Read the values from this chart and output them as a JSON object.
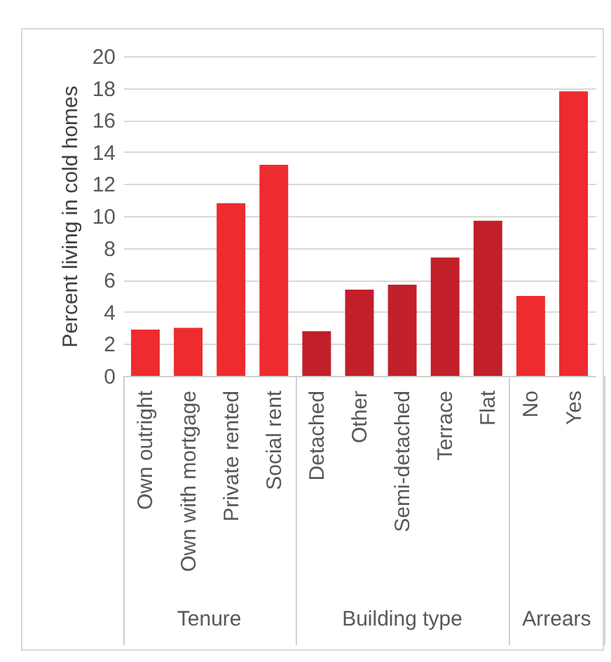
{
  "chart_data": {
    "type": "bar",
    "ylabel": "Percent living in cold homes",
    "categories": [
      "Own outright",
      "Own with mortgage",
      "Private rented",
      "Social rent",
      "Detached",
      "Other",
      "Semi-detached",
      "Terrace",
      "Flat",
      "No",
      "Yes"
    ],
    "values": [
      2.9,
      3.0,
      10.8,
      13.2,
      2.8,
      5.4,
      5.7,
      7.4,
      9.7,
      5.0,
      17.8
    ],
    "colors": [
      "#ee2b2e",
      "#ee2b2e",
      "#ee2b2e",
      "#ee2b2e",
      "#c1202a",
      "#c1202a",
      "#c1202a",
      "#c1202a",
      "#c1202a",
      "#ee2b2e",
      "#ee2b2e"
    ],
    "ylim": [
      0,
      20
    ],
    "yticks": [
      0,
      2,
      4,
      6,
      8,
      10,
      12,
      14,
      16,
      18,
      20
    ],
    "grid": "y",
    "annotations": [
      "Tenure",
      "Building type",
      "Arrears"
    ]
  }
}
